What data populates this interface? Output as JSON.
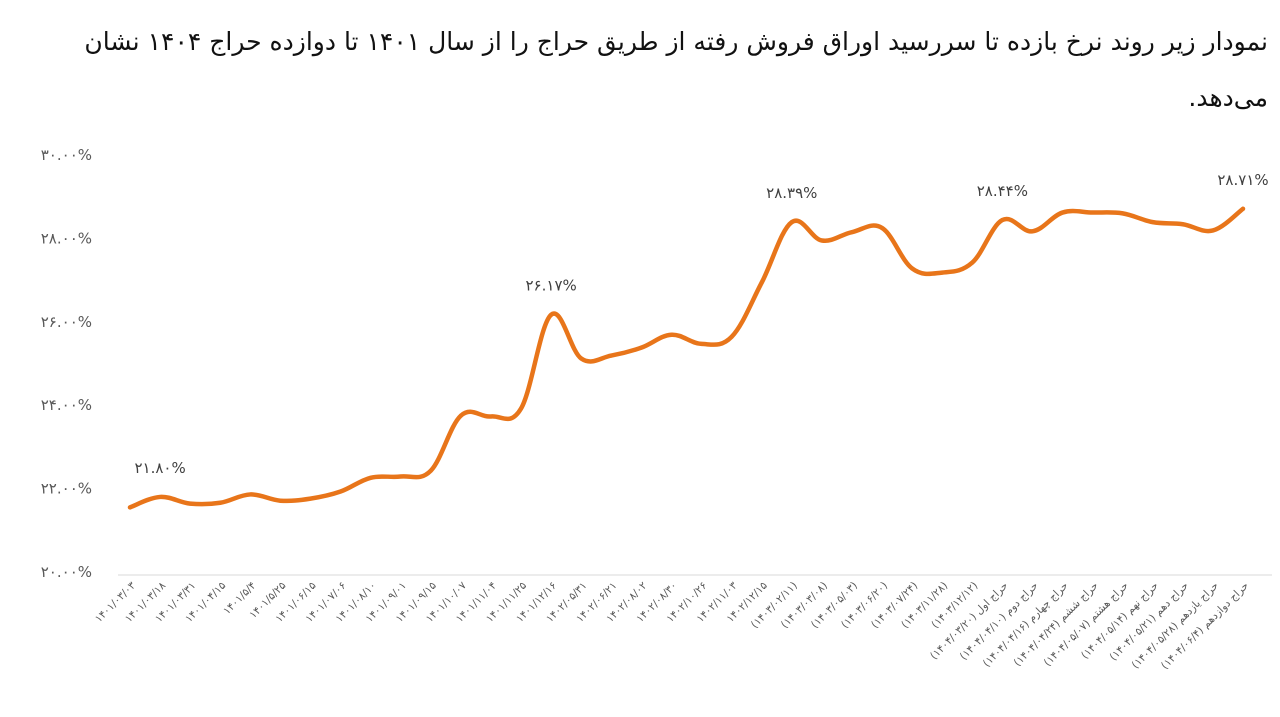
{
  "chart_data": {
    "type": "line",
    "title": "نمودار زیر روند نرخ بازده تا سررسید اوراق فروش رفته از طریق حراج را از سال ۱۴۰۱ تا دوازده حراج ۱۴۰۴ نشان می‌دهد.",
    "xlabel": "",
    "ylabel": "",
    "ylim": [
      20,
      30
    ],
    "yticks": [
      20,
      22,
      24,
      26,
      28,
      30
    ],
    "ytick_labels": [
      "۲۰.۰۰%",
      "۲۲.۰۰%",
      "۲۴.۰۰%",
      "۲۶.۰۰%",
      "۲۸.۰۰%",
      "۳۰.۰۰%"
    ],
    "grid": false,
    "categories": [
      "۱۴۰۱/۰۳/۰۳",
      "۱۴۰۱/۰۳/۱۸",
      "۱۴۰۱/۰۳/۳۱",
      "۱۴۰۱/۰۴/۱۵",
      "۱۴۰۱/۵/۴",
      "۱۴۰۱/۵/۲۵",
      "۱۴۰۱/۰۶/۱۵",
      "۱۴۰۱/۰۷/۰۶",
      "۱۴۰۱/۰۸/۱۰",
      "۱۴۰۱/۰۹/۰۱",
      "۱۴۰۱/۰۹/۱۵",
      "۱۴۰۱/۱۰/۰۷",
      "۱۴۰۱/۱۱/۰۴",
      "۱۴۰۱/۱۱/۲۵",
      "۱۴۰۱/۱۲/۱۶",
      "۱۴۰۲/۰۵/۳۱",
      "۱۴۰۲/۰۶/۲۱",
      "۱۴۰۲/۰۸/۰۲",
      "۱۴۰۲/۰۸/۳۰",
      "۱۴۰۲/۱۰/۲۶",
      "۱۴۰۲/۱۱/۰۳",
      "۱۴۰۲/۱۲/۱۵",
      "(۱۴۰۳/۰۲/۱۱)",
      "(۱۴۰۳/۰۳/۰۸)",
      "(۱۴۰۳/۰۵/۰۳)",
      "(۱۴۰۳/۰۶/۲۰)",
      "(۱۴۰۳/۰۷/۲۴)",
      "(۱۴۰۳/۱۱/۲۸)",
      "(۱۴۰۳/۱۲/۱۲)",
      "حراج اول (۱۴۰۴/۰۳/۲۰)",
      "حراج دوم (۱۴۰۴/۰۴/۱۰)",
      "حراج چهارم (۱۴۰۴/۰۴/۱۶)",
      "حراج ششم (۱۴۰۴/۰۴/۲۴)",
      "حراج هشتم (۱۴۰۴/۰۵/۰۷)",
      "حراج نهم (۱۴۰۴/۰۵/۱۴)",
      "حراج دهم (۱۴۰۴/۰۵/۲۱)",
      "حراج یازدهم (۱۴۰۴/۰۵/۲۸)",
      "حراج دوازدهم (۱۴۰۴/۰۶/۴)"
    ],
    "series": [
      {
        "name": "نرخ بازده تا سررسید",
        "color": "#E8751A",
        "values": [
          21.55,
          21.8,
          21.64,
          21.66,
          21.86,
          21.71,
          21.76,
          21.93,
          22.26,
          22.29,
          22.43,
          23.75,
          23.73,
          23.92,
          26.17,
          25.12,
          25.19,
          25.38,
          25.69,
          25.47,
          25.64,
          26.94,
          28.39,
          27.95,
          28.15,
          28.25,
          27.28,
          27.18,
          27.42,
          28.44,
          28.17,
          28.62,
          28.62,
          28.6,
          28.39,
          28.34,
          28.19,
          28.71
        ]
      }
    ],
    "data_labels": [
      {
        "index": 1,
        "text": "۲۱.۸۰%"
      },
      {
        "index": 14,
        "text": "۲۶.۱۷%"
      },
      {
        "index": 22,
        "text": "۲۸.۳۹%"
      },
      {
        "index": 29,
        "text": "۲۸.۴۴%"
      },
      {
        "index": 37,
        "text": "۲۸.۷۱%"
      }
    ]
  }
}
